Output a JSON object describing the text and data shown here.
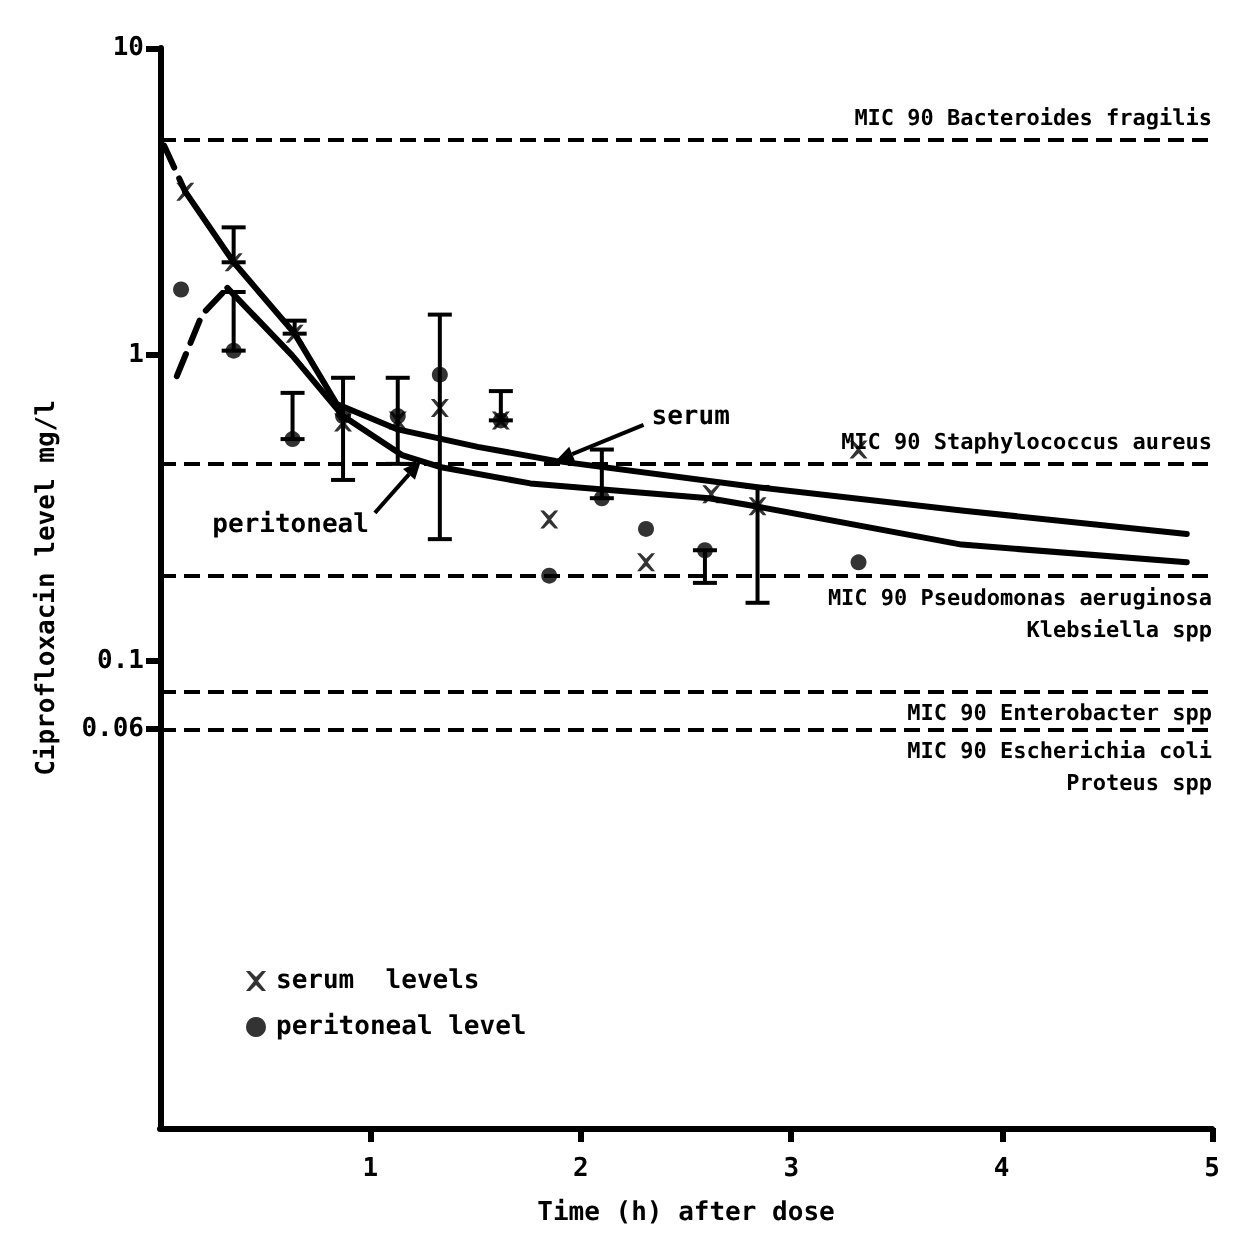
{
  "chart_data": {
    "type": "scatter",
    "xlabel": "Time (h) after dose",
    "ylabel": "Ciprofloxacin level mg/l",
    "xlim": [
      0,
      5
    ],
    "xticks": [
      1,
      2,
      3,
      4,
      5
    ],
    "ylim": [
      0.003,
      10
    ],
    "yticks": [
      10,
      1,
      0.1,
      0.06
    ],
    "log": "y",
    "grid": false,
    "legend": "bottom left",
    "series": [
      {
        "type": "line",
        "line_style": "dashed",
        "color": "#000000",
        "x": [
          0.02,
          0.12
        ],
        "values": [
          4.8,
          3.4
        ]
      },
      {
        "type": "line",
        "line_style": "solid",
        "color": "#000000",
        "x": [
          0.12,
          0.35,
          0.64,
          0.84,
          1.13,
          1.51,
          1.88,
          2.83,
          3.81,
          4.88
        ],
        "values": [
          3.4,
          2.0,
          1.17,
          0.69,
          0.57,
          0.5,
          0.45,
          0.37,
          0.31,
          0.26
        ]
      },
      {
        "type": "line",
        "line_style": "dashed",
        "color": "#000000",
        "x": [
          0.08,
          0.2,
          0.32
        ],
        "values": [
          0.85,
          1.35,
          1.65
        ]
      },
      {
        "type": "line",
        "line_style": "solid",
        "color": "#000000",
        "x": [
          0.32,
          0.63,
          0.87,
          1.15,
          1.33,
          1.76,
          2.61,
          2.83,
          3.81,
          4.88
        ],
        "values": [
          1.65,
          0.99,
          0.63,
          0.47,
          0.43,
          0.38,
          0.34,
          0.32,
          0.24,
          0.21
        ]
      },
      {
        "name": "serum  levels",
        "marker": "cross",
        "color": "#000000",
        "x": [
          0.12,
          0.35,
          0.64,
          0.87,
          1.13,
          1.33,
          1.62,
          1.85,
          2.31,
          2.62,
          2.84,
          3.32
        ],
        "values": [
          3.4,
          2.0,
          1.17,
          0.6,
          0.61,
          0.67,
          0.61,
          0.29,
          0.21,
          0.35,
          0.32,
          0.49
        ],
        "errors": [
          null,
          [
            2.0,
            2.6
          ],
          [
            1.17,
            1.29
          ],
          [
            0.39,
            0.84
          ],
          [
            0.44,
            0.84
          ],
          [
            0.25,
            1.35
          ],
          [
            0.61,
            0.76
          ],
          null,
          null,
          null,
          [
            0.155,
            0.37
          ],
          null
        ]
      },
      {
        "name": "peritoneal level",
        "marker": "circle",
        "color": "#000000",
        "x": [
          0.1,
          0.35,
          0.63,
          0.87,
          1.13,
          1.33,
          1.62,
          1.85,
          2.1,
          2.31,
          2.59,
          3.32
        ],
        "values": [
          1.63,
          1.03,
          0.53,
          0.63,
          0.63,
          0.86,
          0.61,
          0.19,
          0.34,
          0.27,
          0.23,
          0.21
        ],
        "errors": [
          null,
          [
            1.03,
            1.6
          ],
          [
            0.53,
            0.75
          ],
          null,
          null,
          null,
          null,
          null,
          [
            0.34,
            0.49
          ],
          null,
          [
            0.18,
            0.23
          ],
          null
        ]
      }
    ],
    "ref_lines": [
      {
        "axis": "y",
        "value": 5,
        "label": "MIC 90 Bacteroides fragilis",
        "line_style": "dashed"
      },
      {
        "axis": "y",
        "value": 0.44,
        "label": "MIC 90 Staphylococcus aureus",
        "line_style": "dashed"
      },
      {
        "axis": "y",
        "value": 0.19,
        "label": "MIC 90 Pseudomonas aeruginosa\nKlebsiella spp",
        "line_style": "dashed"
      },
      {
        "axis": "y",
        "value": 0.08,
        "label": "MIC 90 Enterobacter spp",
        "line_style": "dashed"
      },
      {
        "axis": "y",
        "value": 0.06,
        "label": "MIC 90 Escherichia coli\nProteus spp",
        "line_style": "dashed"
      }
    ],
    "annotations": [
      {
        "text": "serum",
        "x": 1.88,
        "y": 0.45
      },
      {
        "text": "peritoneal",
        "x": 1.24,
        "y": 0.45
      }
    ]
  }
}
